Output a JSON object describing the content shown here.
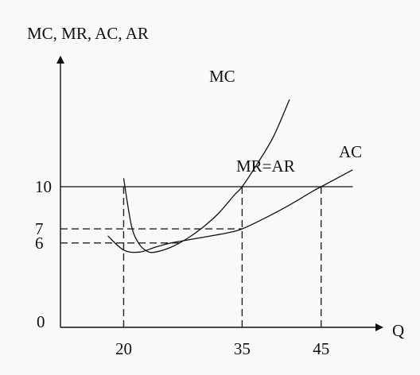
{
  "chart_data": {
    "type": "line",
    "title": "",
    "ylabel": "MC, MR, AC, AR",
    "xlabel": "Q",
    "origin_label": "0",
    "x_ticks": [
      {
        "value": 20,
        "label": "20"
      },
      {
        "value": 35,
        "label": "35"
      },
      {
        "value": 45,
        "label": "45"
      }
    ],
    "y_ticks": [
      {
        "value": 10,
        "label": "10"
      },
      {
        "value": 7,
        "label": "7"
      },
      {
        "value": 6,
        "label": "6"
      }
    ],
    "series": [
      {
        "name": "MC",
        "label": "MC",
        "points": [
          [
            20,
            10.6
          ],
          [
            21,
            7.2
          ],
          [
            22,
            5.9
          ],
          [
            23,
            5.4
          ],
          [
            24,
            5.35
          ],
          [
            26,
            5.7
          ],
          [
            28,
            6.3
          ],
          [
            30,
            7.1
          ],
          [
            32,
            8.1
          ],
          [
            34,
            9.4
          ],
          [
            35,
            10.0
          ],
          [
            37,
            11.7
          ],
          [
            39,
            13.6
          ],
          [
            41,
            16.2
          ]
        ]
      },
      {
        "name": "AC",
        "label": "AC",
        "points": [
          [
            18,
            6.5
          ],
          [
            20,
            5.5
          ],
          [
            22,
            5.35
          ],
          [
            24,
            5.7
          ],
          [
            26,
            6.0
          ],
          [
            28,
            6.2
          ],
          [
            30,
            6.4
          ],
          [
            33,
            6.7
          ],
          [
            35,
            7.0
          ],
          [
            38,
            7.8
          ],
          [
            41,
            8.7
          ],
          [
            44,
            9.7
          ],
          [
            45,
            10.0
          ],
          [
            48,
            10.9
          ],
          [
            49,
            11.2
          ]
        ]
      },
      {
        "name": "MR=AR",
        "label": "MR=AR",
        "points": [
          [
            12,
            10
          ],
          [
            49,
            10
          ]
        ]
      }
    ],
    "reference_lines": [
      {
        "type": "vertical",
        "x": 20,
        "y_from": 0,
        "y_to": 10
      },
      {
        "type": "vertical",
        "x": 35,
        "y_from": 0,
        "y_to": 10
      },
      {
        "type": "vertical",
        "x": 45,
        "y_from": 0,
        "y_to": 10
      },
      {
        "type": "horizontal",
        "y": 7,
        "x_from": 12,
        "x_to": 35
      },
      {
        "type": "horizontal",
        "y": 6,
        "x_from": 12,
        "x_to": 27
      }
    ],
    "grid": false,
    "legend": "none"
  }
}
